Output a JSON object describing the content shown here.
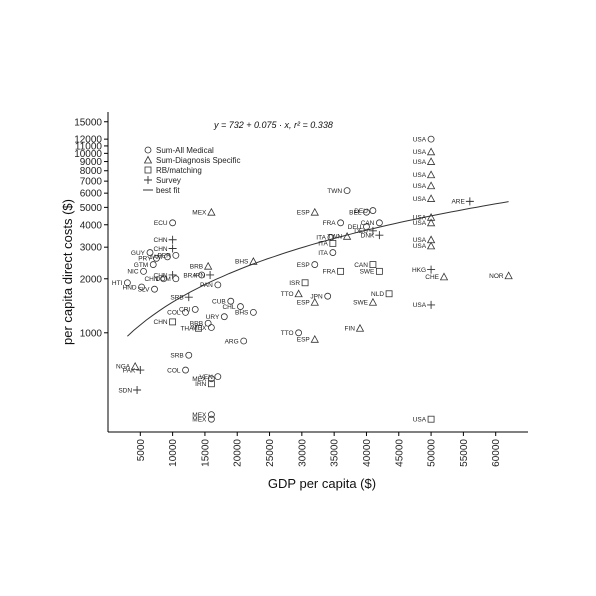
{
  "chart_data": {
    "type": "scatter",
    "title": "",
    "equation": "y = 732 + 0.075 · x,  r² = 0.338",
    "xlabel": "GDP per capita ($)",
    "ylabel": "per capita direct costs ($)",
    "xlim": [
      0,
      65000
    ],
    "ylim": [
      280,
      17000
    ],
    "y_scale": "log",
    "grid": false,
    "legend_position": "top-left",
    "x_ticks": [
      5000,
      10000,
      15000,
      20000,
      25000,
      30000,
      35000,
      40000,
      45000,
      50000,
      55000,
      60000
    ],
    "x_tick_labels": [
      "5000",
      "10000",
      "15000",
      "20000",
      "25000",
      "30000",
      "35000",
      "40000",
      "45000",
      "50000",
      "55000",
      "60000"
    ],
    "y_ticks": [
      1000,
      2000,
      3000,
      4000,
      5000,
      6000,
      7000,
      8000,
      9000,
      10000,
      11000,
      12000,
      15000
    ],
    "y_tick_labels": [
      "1000",
      "2000",
      "3000",
      "4000",
      "5000",
      "6000",
      "7000",
      "8000",
      "9000",
      "10000",
      "11000",
      "12000",
      "15000"
    ],
    "legend": [
      {
        "name": "Sum-All Medical",
        "marker": "circle"
      },
      {
        "name": "Sum-Diagnosis Specific",
        "marker": "triangle"
      },
      {
        "name": "RB/matching",
        "marker": "square"
      },
      {
        "name": "Survey",
        "marker": "plus"
      },
      {
        "name": "best fit",
        "marker": "line"
      }
    ],
    "fit_line": {
      "intercept": 732,
      "slope": 0.075,
      "x_range": [
        3000,
        62000
      ]
    },
    "series": [
      {
        "name": "Sum-All Medical",
        "marker": "circle",
        "points": [
          {
            "label": "USA",
            "x": 50000,
            "y": 12000
          },
          {
            "label": "TWN",
            "x": 37000,
            "y": 6200
          },
          {
            "label": "DEU",
            "x": 41000,
            "y": 4800
          },
          {
            "label": "BEL",
            "x": 40000,
            "y": 4700
          },
          {
            "label": "FRA",
            "x": 36000,
            "y": 4100
          },
          {
            "label": "ECU",
            "x": 10000,
            "y": 4100
          },
          {
            "label": "CAN",
            "x": 42000,
            "y": 4100
          },
          {
            "label": "DEU",
            "x": 40000,
            "y": 3900
          },
          {
            "label": "ITA",
            "x": 34500,
            "y": 3400
          },
          {
            "label": "ITA",
            "x": 34800,
            "y": 2800
          },
          {
            "label": "GUY",
            "x": 6500,
            "y": 2800
          },
          {
            "label": "PRY",
            "x": 7500,
            "y": 2600
          },
          {
            "label": "JAM",
            "x": 9200,
            "y": 2650
          },
          {
            "label": "PER",
            "x": 10500,
            "y": 2700
          },
          {
            "label": "GTM",
            "x": 7000,
            "y": 2400
          },
          {
            "label": "ESP",
            "x": 32000,
            "y": 2400
          },
          {
            "label": "NIC",
            "x": 5500,
            "y": 2200
          },
          {
            "label": "CHN",
            "x": 8600,
            "y": 2000
          },
          {
            "label": "DOM",
            "x": 10500,
            "y": 2000
          },
          {
            "label": "BRA",
            "x": 14500,
            "y": 2100
          },
          {
            "label": "HTI",
            "x": 3000,
            "y": 1900
          },
          {
            "label": "HND",
            "x": 5200,
            "y": 1800
          },
          {
            "label": "SLV",
            "x": 7200,
            "y": 1750
          },
          {
            "label": "PAN",
            "x": 17000,
            "y": 1850
          },
          {
            "label": "CUB",
            "x": 19000,
            "y": 1500
          },
          {
            "label": "CHL",
            "x": 20500,
            "y": 1400
          },
          {
            "label": "CRI",
            "x": 13500,
            "y": 1350
          },
          {
            "label": "COL",
            "x": 12000,
            "y": 1300
          },
          {
            "label": "BHS",
            "x": 22500,
            "y": 1300
          },
          {
            "label": "URY",
            "x": 18000,
            "y": 1230
          },
          {
            "label": "BRB",
            "x": 15500,
            "y": 1130
          },
          {
            "label": "MEX",
            "x": 16000,
            "y": 1070
          },
          {
            "label": "JPN",
            "x": 34000,
            "y": 1600
          },
          {
            "label": "TTO",
            "x": 29500,
            "y": 1000
          },
          {
            "label": "ARG",
            "x": 21000,
            "y": 900
          },
          {
            "label": "SRB",
            "x": 12500,
            "y": 750
          },
          {
            "label": "COL",
            "x": 12000,
            "y": 620
          },
          {
            "label": "VEN",
            "x": 17000,
            "y": 570
          },
          {
            "label": "MEX",
            "x": 16000,
            "y": 555
          },
          {
            "label": "MEX",
            "x": 16000,
            "y": 350
          },
          {
            "label": "MEX",
            "x": 16000,
            "y": 330
          }
        ]
      },
      {
        "name": "Sum-Diagnosis Specific",
        "marker": "triangle",
        "points": [
          {
            "label": "USA",
            "x": 50000,
            "y": 10200
          },
          {
            "label": "USA",
            "x": 50000,
            "y": 9000
          },
          {
            "label": "USA",
            "x": 50000,
            "y": 7600
          },
          {
            "label": "USA",
            "x": 50000,
            "y": 6600
          },
          {
            "label": "USA",
            "x": 50000,
            "y": 5600
          },
          {
            "label": "USA",
            "x": 50000,
            "y": 4400
          },
          {
            "label": "USA",
            "x": 50000,
            "y": 4100
          },
          {
            "label": "USA",
            "x": 50000,
            "y": 3300
          },
          {
            "label": "USA",
            "x": 50000,
            "y": 3050
          },
          {
            "label": "MEX",
            "x": 16000,
            "y": 4700
          },
          {
            "label": "ESP",
            "x": 32000,
            "y": 4700
          },
          {
            "label": "TWN",
            "x": 37000,
            "y": 3450
          },
          {
            "label": "BHS",
            "x": 22500,
            "y": 2500
          },
          {
            "label": "BRB",
            "x": 15500,
            "y": 2350
          },
          {
            "label": "TTO",
            "x": 29500,
            "y": 1650
          },
          {
            "label": "ESP",
            "x": 32000,
            "y": 1480
          },
          {
            "label": "SWE",
            "x": 41000,
            "y": 1480
          },
          {
            "label": "CHE",
            "x": 52000,
            "y": 2050
          },
          {
            "label": "NOR",
            "x": 62000,
            "y": 2080
          },
          {
            "label": "FIN",
            "x": 39000,
            "y": 1060
          },
          {
            "label": "ESP",
            "x": 32000,
            "y": 920
          },
          {
            "label": "NGA",
            "x": 4200,
            "y": 650
          }
        ]
      },
      {
        "name": "RB/matching",
        "marker": "square",
        "points": [
          {
            "label": "ITA",
            "x": 34800,
            "y": 3150
          },
          {
            "label": "FRA",
            "x": 36000,
            "y": 2200
          },
          {
            "label": "ISR",
            "x": 30500,
            "y": 1900
          },
          {
            "label": "CAN",
            "x": 41000,
            "y": 2400
          },
          {
            "label": "SWE",
            "x": 42000,
            "y": 2200
          },
          {
            "label": "NLD",
            "x": 43500,
            "y": 1650
          },
          {
            "label": "CHN",
            "x": 10000,
            "y": 1150
          },
          {
            "label": "THA",
            "x": 14000,
            "y": 1060
          },
          {
            "label": "IRN",
            "x": 16000,
            "y": 520
          },
          {
            "label": "USA",
            "x": 50000,
            "y": 330
          }
        ]
      },
      {
        "name": "Survey",
        "marker": "plus",
        "points": [
          {
            "label": "CHN",
            "x": 10000,
            "y": 3300
          },
          {
            "label": "CHN",
            "x": 10000,
            "y": 2950
          },
          {
            "label": "CHN",
            "x": 10000,
            "y": 2100
          },
          {
            "label": "IRN",
            "x": 15800,
            "y": 2100
          },
          {
            "label": "SRB",
            "x": 12500,
            "y": 1580
          },
          {
            "label": "DEU",
            "x": 41000,
            "y": 3700
          },
          {
            "label": "DNK",
            "x": 42000,
            "y": 3500
          },
          {
            "label": "HKG",
            "x": 50000,
            "y": 2250
          },
          {
            "label": "USA",
            "x": 50000,
            "y": 1430
          },
          {
            "label": "ARE",
            "x": 56000,
            "y": 5400
          },
          {
            "label": "PAK",
            "x": 5000,
            "y": 620
          },
          {
            "label": "SDN",
            "x": 4500,
            "y": 480
          }
        ]
      }
    ]
  }
}
